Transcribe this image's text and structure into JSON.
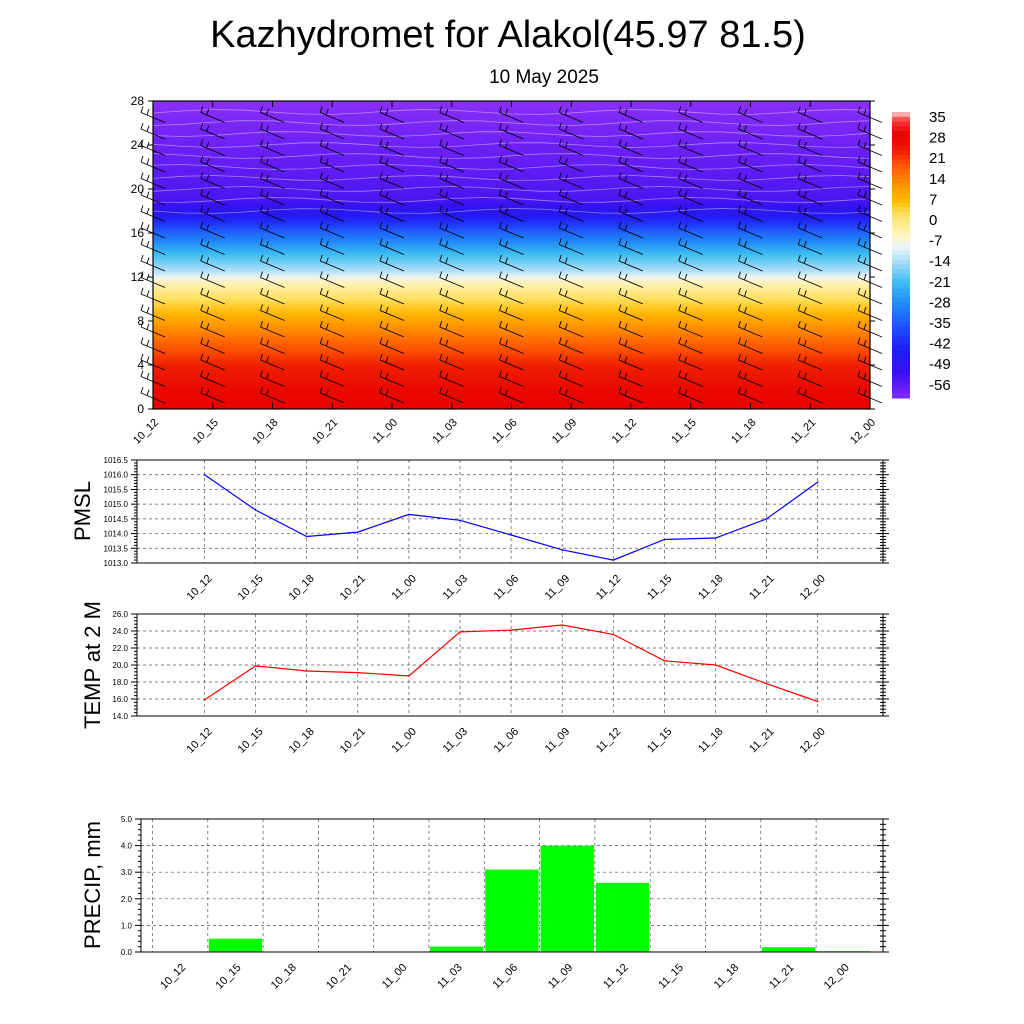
{
  "title": "Kazhydromet for Alakol(45.97 81.5)",
  "subtitle": "10 May 2025",
  "time_labels": [
    "10_12",
    "10_15",
    "10_18",
    "10_21",
    "11_00",
    "11_03",
    "11_06",
    "11_09",
    "11_12",
    "11_15",
    "11_18",
    "11_21",
    "12_00"
  ],
  "chart_data": [
    {
      "type": "heatmap",
      "name": "temperature-cross-section",
      "x": [
        "10_12",
        "10_15",
        "10_18",
        "10_21",
        "11_00",
        "11_03",
        "11_06",
        "11_09",
        "11_12",
        "11_15",
        "11_18",
        "11_21",
        "12_00"
      ],
      "ylim": [
        0,
        28
      ],
      "yticks": [
        "0",
        "4",
        "8",
        "12",
        "16",
        "20",
        "24",
        "28"
      ],
      "profile_height": [
        0,
        2,
        4,
        6,
        8,
        10,
        11.5,
        12.5,
        14,
        16,
        17.5,
        19,
        21,
        23.5,
        26,
        28
      ],
      "profile_temp": [
        30,
        28,
        24,
        18,
        10,
        2,
        -5,
        -14,
        -22,
        -35,
        -48,
        -56,
        -58,
        -60,
        -62,
        -64
      ],
      "colorbar": {
        "ticks": [
          "35",
          "28",
          "21",
          "14",
          "7",
          "0",
          "-7",
          "-14",
          "-21",
          "-28",
          "-35",
          "-42",
          "-49",
          "-56"
        ],
        "range": [
          -63,
          38
        ]
      },
      "wind_barbs": true
    },
    {
      "type": "line",
      "name": "pmsl",
      "ylabel": "PMSL",
      "x": [
        "10_12",
        "10_15",
        "10_18",
        "10_21",
        "11_00",
        "11_03",
        "11_06",
        "11_09",
        "11_12",
        "11_15",
        "11_18",
        "11_21",
        "12_00"
      ],
      "values": [
        1016.0,
        1014.8,
        1013.9,
        1014.05,
        1014.65,
        1014.45,
        1013.95,
        1013.45,
        1013.1,
        1013.8,
        1013.85,
        1014.5,
        1015.75
      ],
      "ylim": [
        1013.0,
        1016.5
      ],
      "yticks": [
        "1013.0",
        "1013.5",
        "1014.0",
        "1014.5",
        "1015.0",
        "1015.5",
        "1016.0",
        "1016.5"
      ],
      "color": "#0000ff",
      "grid": true
    },
    {
      "type": "line",
      "name": "temp-2m",
      "ylabel": "TEMP at 2 M",
      "x": [
        "10_12",
        "10_15",
        "10_18",
        "10_21",
        "11_00",
        "11_03",
        "11_06",
        "11_09",
        "11_12",
        "11_15",
        "11_18",
        "11_21",
        "12_00"
      ],
      "values": [
        15.9,
        19.9,
        19.3,
        19.1,
        18.7,
        23.9,
        24.1,
        24.7,
        23.6,
        20.5,
        20.0,
        17.8,
        15.7
      ],
      "ylim": [
        14.0,
        26.0
      ],
      "yticks": [
        "14.0",
        "16.0",
        "18.0",
        "20.0",
        "22.0",
        "24.0",
        "26.0"
      ],
      "color": "#ff0000",
      "grid": true
    },
    {
      "type": "bar",
      "name": "precip",
      "ylabel": "PRECIP, mm",
      "x": [
        "10_12",
        "10_15",
        "10_18",
        "10_21",
        "11_00",
        "11_03",
        "11_06",
        "11_09",
        "11_12",
        "11_15",
        "11_18",
        "11_21",
        "12_00"
      ],
      "values": [
        0.0,
        0.5,
        0.0,
        0.0,
        0.0,
        0.2,
        3.1,
        4.0,
        2.6,
        0.02,
        0.0,
        0.18,
        0.03
      ],
      "ylim": [
        0.0,
        5.0
      ],
      "yticks": [
        "0.0",
        "1.0",
        "2.0",
        "3.0",
        "4.0",
        "5.0"
      ],
      "color": "#00ff00",
      "grid": true
    }
  ]
}
